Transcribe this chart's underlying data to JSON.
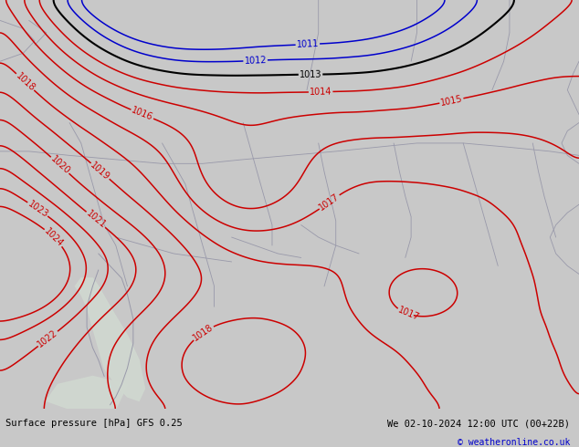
{
  "title_left": "Surface pressure [hPa] GFS 0.25",
  "title_right": "We 02-10-2024 12:00 UTC (00+22B)",
  "copyright": "© weatheronline.co.uk",
  "bg_color_map": "#b3f0a0",
  "bg_color_sea": "#d0d8d0",
  "bg_color_bottom": "#c8c8c8",
  "red_color": "#cc0000",
  "blue_color": "#0000cc",
  "black_color": "#000000",
  "border_color": "#9999aa",
  "label_fontsize": 7,
  "bottom_bar_height": 0.085,
  "bottom_text_color": "#000000",
  "copyright_color": "#0000cc",
  "bottom_bg": "#c0c0c0"
}
